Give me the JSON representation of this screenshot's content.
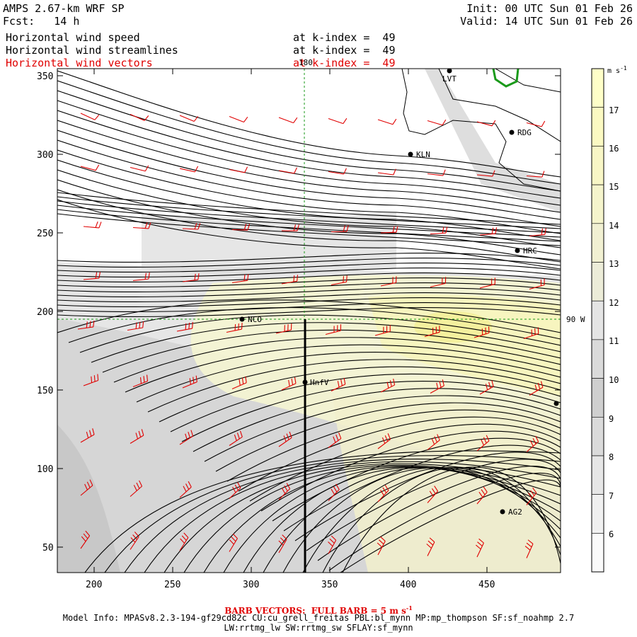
{
  "header": {
    "model": "AMPS 2.67-km WRF SP",
    "fcst_label": "Fcst:",
    "fcst_value": "14 h",
    "init": "Init: 00 UTC Sun 01 Feb 26",
    "valid": "Valid: 14 UTC Sun 01 Feb 26",
    "fields": [
      {
        "name": "Horizontal wind speed",
        "level": "at k-index =  49"
      },
      {
        "name": "Horizontal wind streamlines",
        "level": "at k-index =  49"
      },
      {
        "name": "Horizontal wind vectors",
        "level": "at k-index =  49"
      }
    ]
  },
  "map": {
    "x_ticks": [
      "200",
      "250",
      "300",
      "350",
      "400",
      "450"
    ],
    "y_ticks": [
      "350",
      "300",
      "250",
      "200",
      "150",
      "100",
      "50"
    ],
    "meridian_label": "180",
    "lat_label": "90 W",
    "stations": [
      {
        "id": "LVT",
        "label": "LVT"
      },
      {
        "id": "RDG",
        "label": "RDG"
      },
      {
        "id": "KLN",
        "label": "KLN"
      },
      {
        "id": "HRC",
        "label": "HRC"
      },
      {
        "id": "NCO",
        "label": "NCO"
      },
      {
        "id": "HNFV",
        "label": "HnfV"
      },
      {
        "id": "AG2",
        "label": "AG2"
      }
    ],
    "colorbar": {
      "units": "m s",
      "units_exp": "-1",
      "levels": [
        "17",
        "16",
        "15",
        "14",
        "13",
        "12",
        "11",
        "10",
        "9",
        "8",
        "7",
        "6"
      ]
    }
  },
  "footer": {
    "barb_note": "BARB VECTORS:  FULL BARB = 5 m s",
    "barb_exp": "-1",
    "model_info": "Model Info: MPASv8.2.3-194-gf29cd82c CU:cu_grell_freitas PBL:bl_mynn MP:mp_thompson SF:sf_noahmp 2.7",
    "model_info2": "LW:rrtmg_lw SW:rrtmg_sw SFLAY:sf_mynn"
  },
  "colors": {
    "wind_vectors": "#e00000",
    "coast": "#1a9a1a",
    "grid": "#1a9a1a"
  }
}
